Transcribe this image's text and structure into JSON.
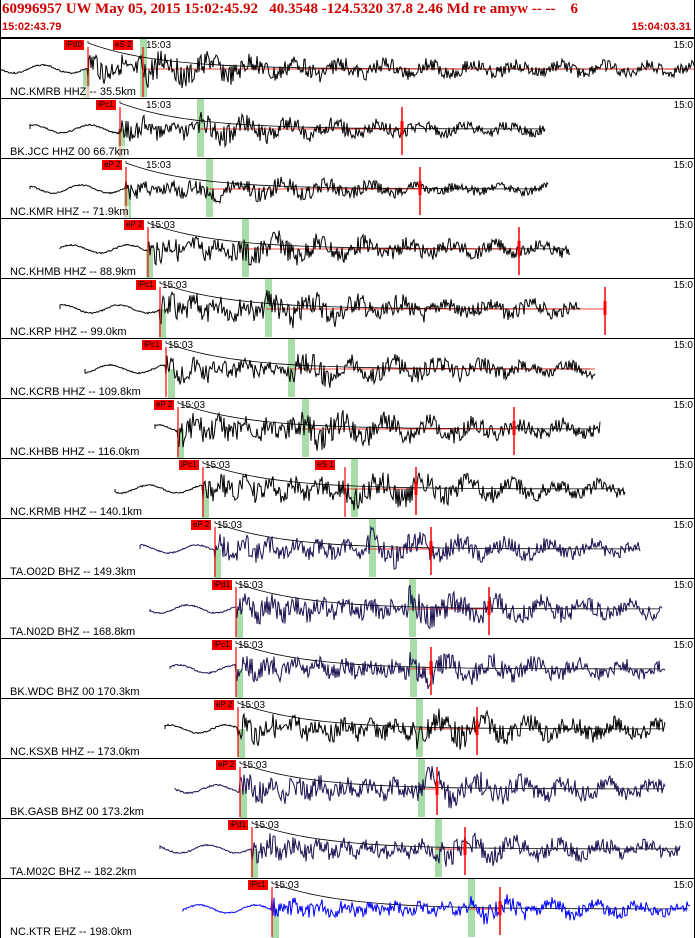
{
  "header": {
    "title": "60996957 UW May 05, 2015 15:02:45.92   40.3548 -124.5320 37.8 2.46 Md re amyw -- --    6",
    "start_time": "15:02:43.79",
    "end_time": "15:04:03.31"
  },
  "colors": {
    "header_text": "#d00000",
    "pick_box": "#ff0000",
    "green_band": "#a8dca8",
    "trace_black": "#000000",
    "trace_navy": "#1a1050",
    "trace_blue": "#0000ff"
  },
  "traces": [
    {
      "label": "NC.KMRB HHZ -- 35.5km",
      "time": "15:03",
      "right_time": "15:0",
      "p_pick": "iPd0",
      "s_pick": "eS 2",
      "color": "#000000",
      "start": 0,
      "p": 88,
      "s": 143,
      "gp": 83,
      "gs": 140,
      "end": 695,
      "amp": 1.0,
      "end_mark": null
    },
    {
      "label": "BK.JCC HHZ 00 66.7km",
      "time": "15:03",
      "right_time": "15:0",
      "p_pick": "iPc1",
      "s_pick": "",
      "color": "#000000",
      "start": 30,
      "p": 120,
      "s": 200,
      "gp": 118,
      "gs": 197,
      "end": 545,
      "amp": 0.8,
      "end_mark": 402
    },
    {
      "label": "NC.KMR HHZ -- 71.9km",
      "time": "15:03",
      "right_time": "15:0",
      "p_pick": "eP 2",
      "s_pick": "",
      "color": "#000000",
      "start": 30,
      "p": 126,
      "s": 207,
      "gp": 124,
      "gs": 206,
      "end": 548,
      "amp": 0.7,
      "end_mark": 420
    },
    {
      "label": "NC.KHMB HHZ -- 88.9km",
      "time": "15:03",
      "right_time": "15:0",
      "p_pick": "eP 2",
      "s_pick": "",
      "color": "#000000",
      "start": 60,
      "p": 148,
      "s": 243,
      "gp": 146,
      "gs": 242,
      "end": 570,
      "amp": 0.9,
      "end_mark": 519
    },
    {
      "label": "NC.KRP HHZ -- 99.0km",
      "time": "15:03",
      "right_time": "15:0",
      "p_pick": "iPc1",
      "s_pick": "",
      "color": "#000000",
      "start": 60,
      "p": 160,
      "s": 266,
      "gp": 159,
      "gs": 265,
      "end": 580,
      "amp": 1.0,
      "end_mark": 605
    },
    {
      "label": "NC.KCRB HHZ -- 109.8km",
      "time": "15:03",
      "right_time": "15:0",
      "p_pick": "iPc1",
      "s_pick": "",
      "color": "#000000",
      "start": 85,
      "p": 166,
      "s": 290,
      "gp": 168,
      "gs": 288,
      "end": 595,
      "amp": 0.9,
      "end_mark": null
    },
    {
      "label": "NC.KHBB HHZ -- 116.0km",
      "time": "15:03",
      "right_time": "15:0",
      "p_pick": "eP 2",
      "s_pick": "",
      "color": "#000000",
      "start": 155,
      "p": 178,
      "s": 302,
      "gp": 177,
      "gs": 302,
      "end": 600,
      "amp": 1.0,
      "end_mark": 514
    },
    {
      "label": "NC.KRMB HHZ -- 140.1km",
      "time": "15:03",
      "right_time": "15:0",
      "p_pick": "iPc1",
      "s_pick": "eS 1",
      "color": "#000000",
      "start": 115,
      "p": 203,
      "s": 345,
      "gp": 202,
      "gs": 351,
      "end": 625,
      "amp": 1.0,
      "end_mark": 416
    },
    {
      "label": "TA.O02D BHZ -- 149.3km",
      "time": "15:03",
      "right_time": "15:0",
      "p_pick": "eP 2",
      "s_pick": "",
      "color": "#1a1050",
      "start": 140,
      "p": 215,
      "s": 368,
      "gp": 214,
      "gs": 369,
      "end": 640,
      "amp": 0.9,
      "end_mark": 431
    },
    {
      "label": "TA.N02D BHZ -- 168.8km",
      "time": "15:03",
      "right_time": "15:0",
      "p_pick": "iPd1",
      "s_pick": "",
      "color": "#1a1050",
      "start": 150,
      "p": 236,
      "s": 409,
      "gp": 236,
      "gs": 409,
      "end": 662,
      "amp": 1.0,
      "end_mark": 489
    },
    {
      "label": "BK.WDC BHZ 00 170.3km",
      "time": "15:03",
      "right_time": "15:0",
      "p_pick": "iPc1",
      "s_pick": "",
      "color": "#1a1050",
      "start": 170,
      "p": 236,
      "s": 410,
      "gp": 236,
      "gs": 410,
      "end": 665,
      "amp": 0.9,
      "end_mark": 431
    },
    {
      "label": "NC.KSXB HHZ -- 173.0km",
      "time": "15:03",
      "right_time": "15:0",
      "p_pick": "eP 2",
      "s_pick": "",
      "color": "#000000",
      "start": 165,
      "p": 238,
      "s": 416,
      "gp": 238,
      "gs": 416,
      "end": 665,
      "amp": 1.0,
      "end_mark": 477
    },
    {
      "label": "BK.GASB BHZ 00 173.2km",
      "time": "15:03",
      "right_time": "15:0",
      "p_pick": "eP 2",
      "s_pick": "",
      "color": "#1a1050",
      "start": 175,
      "p": 240,
      "s": 418,
      "gp": 240,
      "gs": 418,
      "end": 665,
      "amp": 1.0,
      "end_mark": 437
    },
    {
      "label": "TA.M02C BHZ -- 182.2km",
      "time": "15:03",
      "right_time": "15:0",
      "p_pick": "iPd1",
      "s_pick": "",
      "color": "#1a1050",
      "start": 160,
      "p": 252,
      "s": 435,
      "gp": 251,
      "gs": 435,
      "end": 680,
      "amp": 0.9,
      "end_mark": 465
    },
    {
      "label": "NC.KTR EHZ -- 198.0km",
      "time": "15:03",
      "right_time": "15:0",
      "p_pick": "iPc1",
      "s_pick": "",
      "color": "#0000ff",
      "start": 183,
      "p": 272,
      "s": 468,
      "gp": 272,
      "gs": 468,
      "end": 690,
      "amp": 0.7,
      "end_mark": 500
    }
  ]
}
